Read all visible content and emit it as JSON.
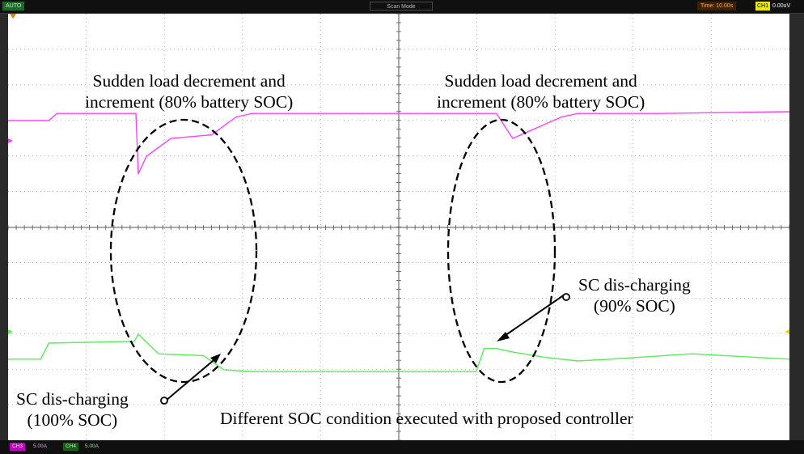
{
  "toolbar": {
    "mode": "AUTO",
    "scan_mode": "Scan Mode",
    "time": "Time: 10.00s",
    "trigger_channel": "CH1",
    "trigger_level": "0.00uV"
  },
  "footer": {
    "ch3_label": "CH3",
    "ch3_scale": "5.00A",
    "ch4_label": "CH4",
    "ch4_scale": "5.00A"
  },
  "annotations": {
    "top_left_line1": "Sudden load decrement and",
    "top_left_line2": "increment  (80% battery SOC)",
    "top_right_line1": "Sudden load decrement and",
    "top_right_line2": "increment (80% battery SOC)",
    "sc_right_line1": "SC dis-charging",
    "sc_right_line2": "(90% SOC)",
    "sc_left_line1": "SC dis-charging",
    "sc_left_line2": "(100% SOC)",
    "bottom_caption": "Different SOC condition executed with proposed controller"
  },
  "colors": {
    "trace_magenta": "#ff40ff",
    "trace_green": "#55ee55",
    "grid": "#888888"
  },
  "chart_data": {
    "type": "line",
    "title": "",
    "xlabel": "",
    "ylabel": "",
    "time_per_division": "Time: 10.00s",
    "grid": true,
    "series": [
      {
        "channel": "CH3",
        "scale": "5.00A",
        "x": [
          0,
          5,
          6,
          15.7,
          16,
          17,
          20,
          25,
          28,
          30,
          50,
          58,
          60,
          62,
          64,
          66,
          68,
          70,
          80,
          96
        ],
        "y": [
          3.0,
          3.0,
          3.2,
          3.2,
          1.5,
          2.0,
          2.5,
          2.6,
          3.1,
          3.2,
          3.2,
          3.2,
          3.2,
          2.5,
          2.7,
          2.9,
          3.1,
          3.2,
          3.2,
          3.25
        ]
      },
      {
        "channel": "CH4",
        "scale": "5.00A",
        "x": [
          0,
          4,
          5,
          15.5,
          16,
          18.5,
          24,
          26.5,
          30,
          40,
          50,
          57.5,
          58.5,
          60,
          62,
          66,
          70,
          74,
          84,
          96
        ],
        "y": [
          -3.7,
          -3.7,
          -3.25,
          -3.2,
          -3.0,
          -3.55,
          -3.6,
          -4.0,
          -4.05,
          -4.05,
          -4.05,
          -4.05,
          -3.4,
          -3.4,
          -3.5,
          -3.65,
          -3.75,
          -3.7,
          -3.55,
          -3.7
        ]
      }
    ]
  }
}
